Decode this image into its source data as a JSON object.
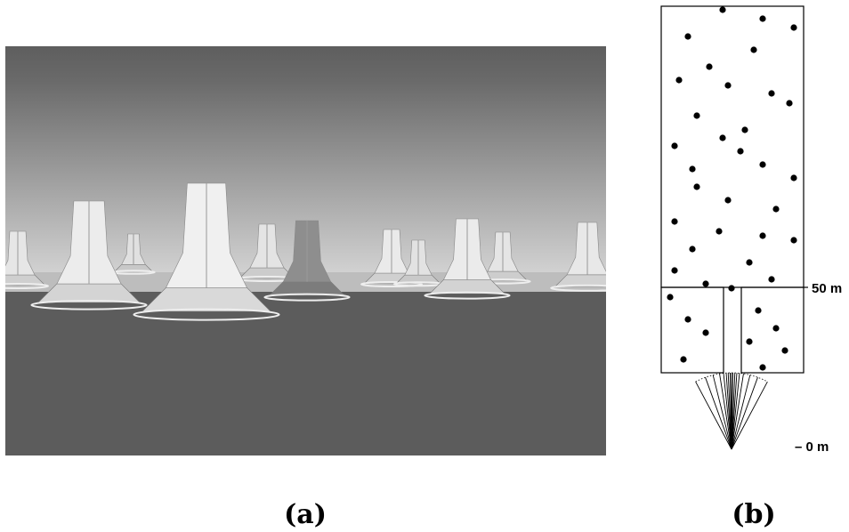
{
  "panel_a": {
    "label": "(a)"
  },
  "panel_b": {
    "label": "(b)",
    "scale_labels": [
      "50 m",
      "– 0 m"
    ]
  }
}
